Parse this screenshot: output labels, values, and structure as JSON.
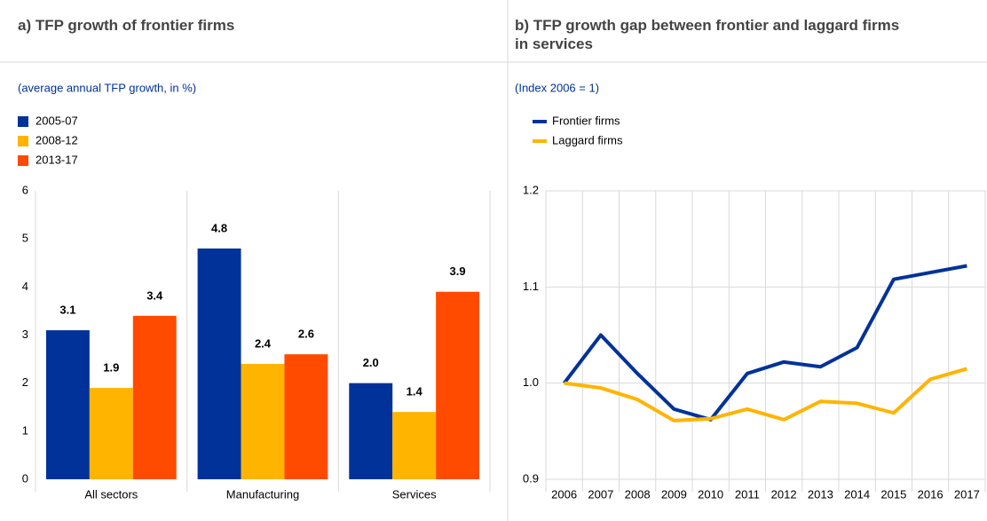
{
  "chart_data": [
    {
      "type": "bar",
      "title": "a) TFP growth of frontier firms",
      "subtitle": "(average annual TFP growth, in %)",
      "categories": [
        "All sectors",
        "Manufacturing",
        "Services"
      ],
      "series": [
        {
          "name": "2005-07",
          "color": "#003299",
          "values": [
            3.1,
            4.8,
            2.0
          ],
          "value_labels": [
            "3.1",
            "4.8",
            "2.0"
          ]
        },
        {
          "name": "2008-12",
          "color": "#ffb400",
          "values": [
            1.9,
            2.4,
            1.4
          ],
          "value_labels": [
            "1.9",
            "2.4",
            "1.4"
          ]
        },
        {
          "name": "2013-17",
          "color": "#ff4b00",
          "values": [
            3.4,
            2.6,
            3.9
          ],
          "value_labels": [
            "3.4",
            "2.6",
            "3.9"
          ]
        }
      ],
      "ylim": [
        0,
        6
      ],
      "yticks": [
        0,
        1,
        2,
        3,
        4,
        5,
        6
      ],
      "grid": false
    },
    {
      "type": "line",
      "title": "b) TFP growth gap between frontier and laggard firms in services",
      "subtitle": "(Index 2006 = 1)",
      "categories": [
        "2006",
        "2007",
        "2008",
        "2009",
        "2010",
        "2011",
        "2012",
        "2013",
        "2014",
        "2015",
        "2016",
        "2017"
      ],
      "series": [
        {
          "name": "Frontier firms",
          "color": "#003299",
          "values": [
            1.0,
            1.05,
            1.01,
            0.973,
            0.962,
            1.01,
            1.022,
            1.017,
            1.037,
            1.108,
            1.115,
            1.122
          ]
        },
        {
          "name": "Laggard firms",
          "color": "#ffb400",
          "values": [
            1.0,
            0.995,
            0.983,
            0.961,
            0.963,
            0.973,
            0.962,
            0.981,
            0.979,
            0.969,
            1.004,
            1.015
          ]
        }
      ],
      "ylim": [
        0.9,
        1.2
      ],
      "yticks": [
        0.9,
        {
          "value": 1.0,
          "label": "1.0"
        },
        1.1,
        1.2
      ],
      "grid": true
    }
  ]
}
